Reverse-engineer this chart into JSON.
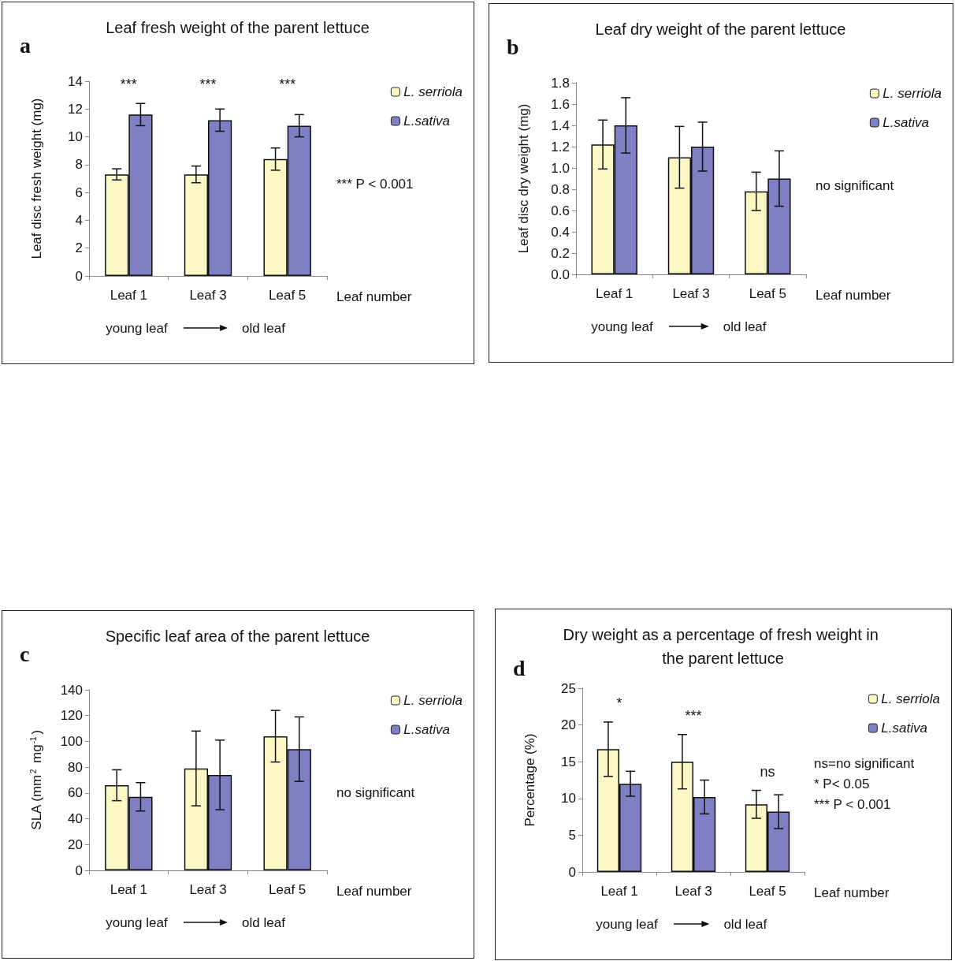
{
  "chart_data": [
    {
      "type": "bar",
      "title": "Leaf fresh weight of the parent lettuce",
      "xlabel": "Leaf number",
      "ylabel": "Leaf disc fresh weight (mg)",
      "categories": [
        "Leaf 1",
        "Leaf 3",
        "Leaf 5"
      ],
      "series": [
        {
          "name": "L. serriola",
          "color": "#fbf8c6",
          "values": [
            7.3,
            7.3,
            8.4
          ],
          "errors": [
            0.4,
            0.6,
            0.8
          ]
        },
        {
          "name": "L.sativa",
          "color": "#7f7fc4",
          "values": [
            11.6,
            11.2,
            10.8
          ],
          "errors": [
            0.8,
            0.8,
            0.8
          ]
        }
      ],
      "ylim": [
        0,
        14
      ],
      "yticks": [
        0,
        2,
        4,
        6,
        8,
        10,
        12,
        14
      ],
      "grid": false,
      "legend": "top right",
      "annotations": [
        "a",
        "***",
        "***",
        "***",
        "*** P < 0.001",
        "young leaf",
        "old leaf"
      ]
    },
    {
      "type": "bar",
      "title": "Leaf dry weight of the parent lettuce",
      "xlabel": "Leaf number",
      "ylabel": "Leaf disc dry weight (mg)",
      "categories": [
        "Leaf 1",
        "Leaf 3",
        "Leaf 5"
      ],
      "series": [
        {
          "name": "L. serriola",
          "color": "#fbf8c6",
          "values": [
            1.22,
            1.1,
            0.78
          ],
          "errors": [
            0.23,
            0.29,
            0.18
          ]
        },
        {
          "name": "L.sativa",
          "color": "#7f7fc4",
          "values": [
            1.4,
            1.2,
            0.9
          ],
          "errors": [
            0.26,
            0.23,
            0.26
          ]
        }
      ],
      "ylim": [
        0,
        1.8
      ],
      "yticks": [
        {
          "value": 0,
          "label": "0.0"
        },
        {
          "value": 0.2,
          "label": "0.2"
        },
        {
          "value": 0.4,
          "label": "0.4"
        },
        {
          "value": 0.6,
          "label": "0.6"
        },
        {
          "value": 0.8,
          "label": "0.8"
        },
        {
          "value": 1,
          "label": "1.0"
        },
        {
          "value": 1.2,
          "label": "1.2"
        },
        {
          "value": 1.4,
          "label": "1.4"
        },
        {
          "value": 1.6,
          "label": "1.6"
        },
        {
          "value": 1.8,
          "label": "1.8"
        }
      ],
      "grid": false,
      "legend": "top right",
      "annotations": [
        "b",
        "no significant",
        "young leaf",
        "old leaf"
      ]
    },
    {
      "type": "bar",
      "title": "Specific leaf area of the parent lettuce",
      "xlabel": "Leaf number",
      "ylabel": "SLA (mm$^{2}$ mg$^{-1}$)",
      "categories": [
        "Leaf 1",
        "Leaf 3",
        "Leaf 5"
      ],
      "series": [
        {
          "name": "L. serriola",
          "color": "#fbf8c6",
          "values": [
            66,
            79,
            104
          ],
          "errors": [
            12,
            29,
            20
          ]
        },
        {
          "name": "L.sativa",
          "color": "#7f7fc4",
          "values": [
            57,
            74,
            94
          ],
          "errors": [
            11,
            27,
            25
          ]
        }
      ],
      "ylim": [
        0,
        140
      ],
      "yticks": [
        0,
        20,
        40,
        60,
        80,
        100,
        120,
        140
      ],
      "grid": false,
      "legend": "top right",
      "annotations": [
        "c",
        "no significant",
        "young leaf",
        "old leaf"
      ]
    },
    {
      "type": "bar",
      "title": "Dry weight as a percentage of fresh weight in the parent lettuce",
      "xlabel": "Leaf number",
      "ylabel": "Percentage (%)",
      "categories": [
        "Leaf 1",
        "Leaf 3",
        "Leaf 5"
      ],
      "series": [
        {
          "name": "L. serriola",
          "color": "#fbf8c6",
          "values": [
            16.7,
            15,
            9.2
          ],
          "errors": [
            3.7,
            3.7,
            1.9
          ]
        },
        {
          "name": "L.sativa",
          "color": "#7f7fc4",
          "values": [
            12,
            10.2,
            8.2
          ],
          "errors": [
            1.7,
            2.3,
            2.3
          ]
        }
      ],
      "ylim": [
        0,
        25
      ],
      "yticks": [
        0,
        5,
        10,
        15,
        20,
        25
      ],
      "grid": false,
      "legend": "top right",
      "annotations": [
        "d",
        "*",
        "***",
        "ns",
        "ns=no significant",
        "* P< 0.05",
        "*** P < 0.001",
        "young leaf",
        "old leaf"
      ]
    }
  ]
}
